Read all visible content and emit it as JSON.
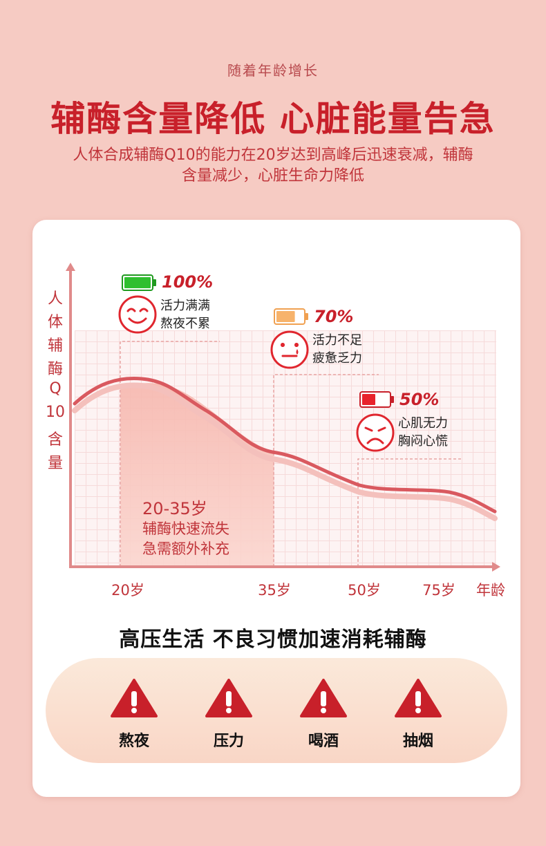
{
  "header": {
    "subtitle": "随着年龄增长",
    "title": "辅酶含量降低  心脏能量告急",
    "desc_line1": "人体合成辅酶Q10的能力在20岁达到高峰后迅速衰减，辅酶",
    "desc_line2": "含量减少，心脏生命力降低"
  },
  "chart": {
    "ylabel_chars": [
      "人",
      "体",
      "辅",
      "酶",
      "Q",
      "10",
      "含",
      "量"
    ],
    "x_ticks": [
      "20岁",
      "35岁",
      "50岁",
      "75岁",
      "年龄"
    ],
    "zone": {
      "range": "20-35岁",
      "line1": "辅酶快速流失",
      "line2": "急需额外补充"
    },
    "stages": [
      {
        "percent": "100%",
        "status1": "活力满满",
        "status2": "熬夜不累",
        "battery_color": "#2fbf2f",
        "battery_level": 1.0
      },
      {
        "percent": "70%",
        "status1": "活力不足",
        "status2": "疲惫乏力",
        "battery_color": "#f7b36b",
        "battery_level": 0.7
      },
      {
        "percent": "50%",
        "status1": "心肌无力",
        "status2": "胸闷心慌",
        "battery_color": "#e8232c",
        "battery_level": 0.5
      }
    ]
  },
  "habits": {
    "title": "高压生活  不良习惯加速消耗辅酶",
    "items": [
      {
        "label": "熬夜",
        "icon": "warning-icon"
      },
      {
        "label": "压力",
        "icon": "warning-icon"
      },
      {
        "label": "喝酒",
        "icon": "warning-icon"
      },
      {
        "label": "抽烟",
        "icon": "warning-icon"
      }
    ]
  },
  "colors": {
    "accent_red": "#c8202a",
    "background_pink": "#f6cbc3"
  }
}
